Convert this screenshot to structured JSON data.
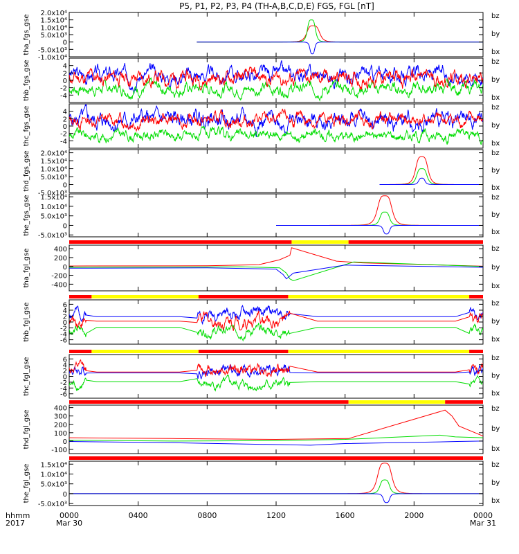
{
  "title": "P5, P1, P2, P3, P4 (TH-A,B,C,D,E) FGS, FGL [nT]",
  "colors": {
    "bz": "#ff0000",
    "by": "#00dd00",
    "bx": "#0000ff",
    "yellow": "#ffff00",
    "red": "#ff0000",
    "black": "#000000"
  },
  "time_axis": {
    "corner_top": "hhmm",
    "corner_bottom": "2017",
    "ticks": [
      {
        "hour": 0,
        "label": "0000",
        "date": "Mar 30"
      },
      {
        "hour": 4,
        "label": "0400",
        "date": ""
      },
      {
        "hour": 8,
        "label": "0800",
        "date": ""
      },
      {
        "hour": 12,
        "label": "1200",
        "date": ""
      },
      {
        "hour": 16,
        "label": "1600",
        "date": ""
      },
      {
        "hour": 20,
        "label": "2000",
        "date": ""
      },
      {
        "hour": 24,
        "label": "0000",
        "date": "Mar 31"
      }
    ]
  },
  "chart_data": [
    {
      "type": "line",
      "ylabel": "tha_fgs_gse",
      "yticks": [
        {
          "v": -10000,
          "label": "-1.0x10⁴"
        },
        {
          "v": -5000,
          "label": "-5.0x10³"
        },
        {
          "v": 0,
          "label": "0"
        },
        {
          "v": 5000,
          "label": "5.0x10³"
        },
        {
          "v": 10000,
          "label": "1.0x10⁴"
        },
        {
          "v": 15000,
          "label": "1.5x10⁴"
        },
        {
          "v": 20000,
          "label": "2.0x10⁴"
        }
      ],
      "ylim": [
        -10000,
        20000
      ],
      "coverage": [
        [
          7.4,
          24
        ]
      ],
      "features": [
        {
          "name": "bz",
          "style": "peak",
          "center": 14.15,
          "width": 0.4,
          "amp": 11000,
          "base": 0
        },
        {
          "name": "by",
          "style": "peak",
          "center": 14.05,
          "width": 0.25,
          "amp": 15000,
          "base": 0
        },
        {
          "name": "bx",
          "style": "peak",
          "center": 14.1,
          "width": 0.15,
          "amp": -8000,
          "base": 0
        }
      ],
      "legend": [
        "bz",
        "by",
        "bx"
      ]
    },
    {
      "type": "line",
      "ylabel": "thb_fgs_gse",
      "yticks": [
        {
          "v": -4,
          "label": "-4"
        },
        {
          "v": -2,
          "label": "-2"
        },
        {
          "v": 0,
          "label": "0"
        },
        {
          "v": 2,
          "label": "2"
        },
        {
          "v": 4,
          "label": "4"
        }
      ],
      "ylim": [
        -6,
        6
      ],
      "coverage": [
        [
          0,
          24
        ]
      ],
      "features": [
        {
          "name": "bx",
          "style": "noise",
          "base": 1.5,
          "amp": 3.5,
          "seed": 3
        },
        {
          "name": "by",
          "style": "noise",
          "base": -2.2,
          "amp": 2.8,
          "seed": 7
        },
        {
          "name": "bz",
          "style": "noise",
          "base": 0.6,
          "amp": 3.5,
          "seed": 11
        }
      ],
      "legend": [
        "bz",
        "by",
        "bx"
      ]
    },
    {
      "type": "line",
      "ylabel": "thc_fgs_gse",
      "yticks": [
        {
          "v": -4,
          "label": "-4"
        },
        {
          "v": -2,
          "label": "-2"
        },
        {
          "v": 0,
          "label": "0"
        },
        {
          "v": 2,
          "label": "2"
        },
        {
          "v": 4,
          "label": "4"
        }
      ],
      "ylim": [
        -6,
        6
      ],
      "coverage": [
        [
          0,
          24
        ]
      ],
      "features": [
        {
          "name": "bx",
          "style": "noise",
          "base": 1.5,
          "amp": 4,
          "seed": 5
        },
        {
          "name": "by",
          "style": "noise",
          "base": -2.5,
          "amp": 2.5,
          "seed": 9
        },
        {
          "name": "bz",
          "style": "noise",
          "base": 1.5,
          "amp": 3,
          "seed": 13
        }
      ],
      "legend": [
        "bz",
        "by",
        "bx"
      ]
    },
    {
      "type": "line",
      "ylabel": "thd_fgs_gse",
      "yticks": [
        {
          "v": -5000,
          "label": "-5.0x10³"
        },
        {
          "v": 0,
          "label": "0"
        },
        {
          "v": 5000,
          "label": "5.0x10³"
        },
        {
          "v": 10000,
          "label": "1.0x10⁴"
        },
        {
          "v": 15000,
          "label": "1.5x10⁴"
        },
        {
          "v": 20000,
          "label": "2.0x10⁴"
        }
      ],
      "ylim": [
        -5000,
        22000
      ],
      "coverage": [
        [
          18.0,
          24
        ]
      ],
      "features": [
        {
          "name": "bz",
          "style": "peak",
          "center": 20.45,
          "width": 0.38,
          "amp": 17500,
          "base": 0
        },
        {
          "name": "by",
          "style": "peak",
          "center": 20.45,
          "width": 0.32,
          "amp": 10000,
          "base": 0
        },
        {
          "name": "bx",
          "style": "peak",
          "center": 20.45,
          "width": 0.2,
          "amp": 4000,
          "base": 0
        }
      ],
      "legend": [
        "bz",
        "by",
        "bx"
      ]
    },
    {
      "type": "line",
      "ylabel": "the_fgs_gse",
      "yticks": [
        {
          "v": -5000,
          "label": "-5.0x10³"
        },
        {
          "v": 0,
          "label": "0"
        },
        {
          "v": 5000,
          "label": "5.0x10³"
        },
        {
          "v": 10000,
          "label": "1.0x10⁴"
        },
        {
          "v": 15000,
          "label": "1.5x10⁴"
        }
      ],
      "ylim": [
        -6000,
        16500
      ],
      "coverage": [
        [
          12.0,
          24
        ]
      ],
      "features": [
        {
          "name": "bz",
          "style": "peak",
          "center": 18.3,
          "width": 0.45,
          "amp": 15500,
          "base": 0
        },
        {
          "name": "by",
          "style": "peak",
          "center": 18.3,
          "width": 0.3,
          "amp": 7000,
          "base": 0
        },
        {
          "name": "bx",
          "style": "peak",
          "center": 18.4,
          "width": 0.2,
          "amp": -4500,
          "base": 0
        }
      ],
      "legend": [
        "bz",
        "by",
        "bx"
      ]
    },
    {
      "type": "line",
      "ylabel": "tha_fgl_gse",
      "yticks": [
        {
          "v": -400,
          "label": "-400"
        },
        {
          "v": -200,
          "label": "-200"
        },
        {
          "v": 0,
          "label": "0"
        },
        {
          "v": 200,
          "label": "200"
        },
        {
          "v": 400,
          "label": "400"
        }
      ],
      "ylim": [
        -550,
        480
      ],
      "bar": [
        {
          "from": 0,
          "to": 12.9,
          "color": "red"
        },
        {
          "from": 12.9,
          "to": 16.2,
          "color": "yellow"
        },
        {
          "from": 16.2,
          "to": 24,
          "color": "red"
        }
      ],
      "features": [
        {
          "name": "bz",
          "style": "segments",
          "pts": [
            [
              0,
              10
            ],
            [
              8,
              15
            ],
            [
              11,
              40
            ],
            [
              12.2,
              150
            ],
            [
              12.8,
              250
            ],
            [
              12.9,
              420
            ],
            [
              15.5,
              120
            ],
            [
              17,
              80
            ],
            [
              24,
              5
            ]
          ]
        },
        {
          "name": "by",
          "style": "segments",
          "pts": [
            [
              0,
              -20
            ],
            [
              10,
              -10
            ],
            [
              12.2,
              -30
            ],
            [
              12.6,
              -150
            ],
            [
              12.8,
              -280
            ],
            [
              13.0,
              -320
            ],
            [
              16.5,
              100
            ],
            [
              24,
              0
            ]
          ]
        },
        {
          "name": "bx",
          "style": "segments",
          "pts": [
            [
              0,
              -40
            ],
            [
              8,
              -30
            ],
            [
              12,
              -60
            ],
            [
              12.4,
              -180
            ],
            [
              12.6,
              -280
            ],
            [
              13.0,
              -150
            ],
            [
              16,
              30
            ],
            [
              24,
              -20
            ]
          ]
        }
      ],
      "legend": [
        "bz",
        "by",
        "bx"
      ]
    },
    {
      "type": "line",
      "ylabel": "thb_fgl_gse",
      "yticks": [
        {
          "v": -6,
          "label": "-6"
        },
        {
          "v": -4,
          "label": "-4"
        },
        {
          "v": -2,
          "label": "-2"
        },
        {
          "v": 0,
          "label": "0"
        },
        {
          "v": 2,
          "label": "2"
        },
        {
          "v": 4,
          "label": "4"
        },
        {
          "v": 6,
          "label": "6"
        }
      ],
      "ylim": [
        -7.5,
        7.5
      ],
      "bar": [
        {
          "from": 0,
          "to": 1.3,
          "color": "red"
        },
        {
          "from": 1.3,
          "to": 7.5,
          "color": "yellow"
        },
        {
          "from": 7.5,
          "to": 12.7,
          "color": "red"
        },
        {
          "from": 12.7,
          "to": 23.2,
          "color": "yellow"
        },
        {
          "from": 23.2,
          "to": 24,
          "color": "red"
        }
      ],
      "features": [
        {
          "name": "bx",
          "style": "mixed",
          "base": 3,
          "amp": 3,
          "seed": 2,
          "noisy": [
            [
              0,
              1
            ],
            [
              7.4,
              12.8
            ],
            [
              23.2,
              24
            ]
          ]
        },
        {
          "name": "by",
          "style": "mixed",
          "base": -3,
          "amp": 2.5,
          "seed": 6,
          "noisy": [
            [
              0,
              1
            ],
            [
              7.4,
              12.8
            ],
            [
              23.2,
              24
            ]
          ]
        },
        {
          "name": "bz",
          "style": "mixed",
          "base": 0.5,
          "amp": 3.5,
          "seed": 10,
          "noisy": [
            [
              0,
              1
            ],
            [
              7.4,
              12.8
            ],
            [
              23.2,
              24
            ]
          ]
        }
      ],
      "legend": [
        "bz",
        "by",
        "bx"
      ]
    },
    {
      "type": "line",
      "ylabel": "thc_fgl_gse",
      "yticks": [
        {
          "v": -6,
          "label": "-6"
        },
        {
          "v": -4,
          "label": "-4"
        },
        {
          "v": -2,
          "label": "-2"
        },
        {
          "v": 0,
          "label": "0"
        },
        {
          "v": 2,
          "label": "2"
        },
        {
          "v": 4,
          "label": "4"
        },
        {
          "v": 6,
          "label": "6"
        }
      ],
      "ylim": [
        -7.5,
        7.5
      ],
      "bar": [
        {
          "from": 0,
          "to": 1.3,
          "color": "red"
        },
        {
          "from": 1.3,
          "to": 7.5,
          "color": "yellow"
        },
        {
          "from": 7.5,
          "to": 12.7,
          "color": "red"
        },
        {
          "from": 12.7,
          "to": 23.2,
          "color": "yellow"
        },
        {
          "from": 23.2,
          "to": 24,
          "color": "red"
        }
      ],
      "features": [
        {
          "name": "bx",
          "style": "mixed",
          "base": 2,
          "amp": 3,
          "seed": 4,
          "noisy": [
            [
              0,
              1
            ],
            [
              7.4,
              12.8
            ],
            [
              23.2,
              24
            ]
          ]
        },
        {
          "name": "by",
          "style": "mixed",
          "base": -3,
          "amp": 2.5,
          "seed": 8,
          "noisy": [
            [
              0,
              1
            ],
            [
              7.4,
              12.8
            ],
            [
              23.2,
              24
            ]
          ]
        },
        {
          "name": "bz",
          "style": "mixed",
          "base": 2.5,
          "amp": 3,
          "seed": 12,
          "noisy": [
            [
              0,
              1
            ],
            [
              7.4,
              12.8
            ],
            [
              23.2,
              24
            ]
          ]
        }
      ],
      "legend": [
        "bz",
        "by",
        "bx"
      ]
    },
    {
      "type": "line",
      "ylabel": "thd_fgl_gse",
      "yticks": [
        {
          "v": -100,
          "label": "-100"
        },
        {
          "v": 0,
          "label": "0"
        },
        {
          "v": 100,
          "label": "100"
        },
        {
          "v": 200,
          "label": "200"
        },
        {
          "v": 300,
          "label": "300"
        },
        {
          "v": 400,
          "label": "400"
        }
      ],
      "ylim": [
        -150,
        430
      ],
      "bar": [
        {
          "from": 0,
          "to": 16.2,
          "color": "red"
        },
        {
          "from": 16.2,
          "to": 21.8,
          "color": "yellow"
        },
        {
          "from": 21.8,
          "to": 24,
          "color": "red"
        }
      ],
      "features": [
        {
          "name": "bz",
          "style": "segments",
          "pts": [
            [
              0,
              40
            ],
            [
              6,
              30
            ],
            [
              12,
              20
            ],
            [
              16.2,
              30
            ],
            [
              21.8,
              370
            ],
            [
              22.2,
              300
            ],
            [
              22.6,
              180
            ],
            [
              24,
              60
            ]
          ]
        },
        {
          "name": "by",
          "style": "segments",
          "pts": [
            [
              0,
              10
            ],
            [
              6,
              0
            ],
            [
              12,
              5
            ],
            [
              16,
              20
            ],
            [
              21.5,
              70
            ],
            [
              22.4,
              50
            ],
            [
              24,
              40
            ]
          ]
        },
        {
          "name": "bx",
          "style": "segments",
          "pts": [
            [
              0,
              -5
            ],
            [
              6,
              -20
            ],
            [
              14,
              -50
            ],
            [
              16,
              -30
            ],
            [
              21.5,
              -10
            ],
            [
              22.5,
              -5
            ],
            [
              24,
              0
            ]
          ]
        }
      ],
      "legend": [
        "bz",
        "by",
        "bx"
      ]
    },
    {
      "type": "line",
      "ylabel": "the_fgl_gse",
      "yticks": [
        {
          "v": -5000,
          "label": "-5.0x10³"
        },
        {
          "v": 0,
          "label": "0"
        },
        {
          "v": 5000,
          "label": "5.0x10³"
        },
        {
          "v": 10000,
          "label": "1.0x10⁴"
        },
        {
          "v": 15000,
          "label": "1.5x10⁴"
        }
      ],
      "ylim": [
        -6000,
        16500
      ],
      "bar": [
        {
          "from": 0,
          "to": 24,
          "color": "red"
        }
      ],
      "features": [
        {
          "name": "bz",
          "style": "peak",
          "center": 18.3,
          "width": 0.45,
          "amp": 15500,
          "base": 0
        },
        {
          "name": "by",
          "style": "peak",
          "center": 18.3,
          "width": 0.3,
          "amp": 7000,
          "base": 0
        },
        {
          "name": "bx",
          "style": "peak",
          "center": 18.4,
          "width": 0.2,
          "amp": -4500,
          "base": 0
        }
      ],
      "legend": [
        "bz",
        "by",
        "bx"
      ]
    }
  ]
}
